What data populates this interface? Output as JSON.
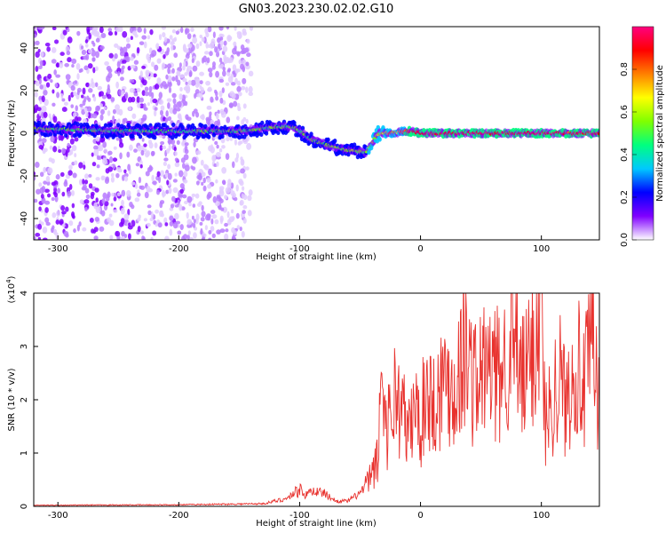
{
  "title": "GN03.2023.230.02.02.G10",
  "chart_data": [
    {
      "type": "heatmap",
      "xlabel": "Height of straight line (km)",
      "ylabel": "Frequency (Hz)",
      "xlim": [
        -320,
        148
      ],
      "ylim": [
        -50,
        50
      ],
      "xticks": [
        -300,
        -200,
        -100,
        0,
        100
      ],
      "yticks": [
        -40,
        -20,
        0,
        20,
        40
      ],
      "colorbar": {
        "label": "Normalized spectral amplitude",
        "range": [
          0,
          1
        ],
        "ticks": [
          "0.0",
          "0.2",
          "0.4",
          "0.6",
          "0.8"
        ],
        "tick_values": [
          0,
          0.2,
          0.4,
          0.6,
          0.8
        ],
        "colors": [
          "#ffffff",
          "#8000ff",
          "#0000ff",
          "#00c8ff",
          "#00ff80",
          "#80ff00",
          "#ffff00",
          "#ff8000",
          "#ff0000",
          "#ff0080"
        ]
      },
      "ridge": [
        {
          "x": -320,
          "f": 2,
          "amp": 0.55
        },
        {
          "x": -300,
          "f": 2,
          "amp": 0.5
        },
        {
          "x": -250,
          "f": 1,
          "amp": 0.45
        },
        {
          "x": -200,
          "f": 1,
          "amp": 0.45
        },
        {
          "x": -150,
          "f": 1,
          "amp": 0.5
        },
        {
          "x": -120,
          "f": 3,
          "amp": 0.5
        },
        {
          "x": -105,
          "f": 3,
          "amp": 0.5
        },
        {
          "x": -90,
          "f": -3,
          "amp": 0.5
        },
        {
          "x": -75,
          "f": -6,
          "amp": 0.55
        },
        {
          "x": -60,
          "f": -8,
          "amp": 0.55
        },
        {
          "x": -45,
          "f": -9,
          "amp": 0.55
        },
        {
          "x": -35,
          "f": 0,
          "amp": 0.6
        },
        {
          "x": -25,
          "f": 0,
          "amp": 0.7
        },
        {
          "x": -10,
          "f": 1,
          "amp": 0.8
        },
        {
          "x": 0,
          "f": 0,
          "amp": 0.9
        },
        {
          "x": 50,
          "f": 0,
          "amp": 0.92
        },
        {
          "x": 100,
          "f": 0,
          "amp": 0.9
        },
        {
          "x": 148,
          "f": 0,
          "amp": 0.9
        }
      ],
      "noise_region": {
        "x": [
          -320,
          -140
        ],
        "f": [
          -50,
          50
        ],
        "amp_max": 0.35
      }
    },
    {
      "type": "line",
      "xlabel": "Height of straight line (km)",
      "ylabel": "SNR (10 * v/v)",
      "y_multiplier": "(x10",
      "y_multiplier_exp": "4",
      "y_multiplier_close": ")",
      "xlim": [
        -320,
        148
      ],
      "ylim": [
        0,
        4
      ],
      "xticks": [
        -300,
        -200,
        -100,
        0,
        100
      ],
      "yticks": [
        0,
        1,
        2,
        3,
        4
      ],
      "series": [
        {
          "color": "#e8322e",
          "points": [
            [
              -320,
              0.02
            ],
            [
              -200,
              0.03
            ],
            [
              -130,
              0.05
            ],
            [
              -110,
              0.15
            ],
            [
              -100,
              0.35
            ],
            [
              -95,
              0.2
            ],
            [
              -90,
              0.3
            ],
            [
              -80,
              0.25
            ],
            [
              -70,
              0.1
            ],
            [
              -60,
              0.1
            ],
            [
              -50,
              0.25
            ],
            [
              -45,
              0.4
            ],
            [
              -40,
              0.6
            ],
            [
              -35,
              0.9
            ],
            [
              -32,
              2.75
            ],
            [
              -28,
              1.4
            ],
            [
              -22,
              2.1
            ],
            [
              -15,
              1.8
            ],
            [
              -10,
              1.3
            ],
            [
              -5,
              1.9
            ],
            [
              0,
              1.5
            ],
            [
              5,
              2.3
            ],
            [
              10,
              1.9
            ],
            [
              20,
              2.4
            ],
            [
              30,
              2.2
            ],
            [
              35,
              3.05
            ],
            [
              45,
              2.3
            ],
            [
              55,
              2.6
            ],
            [
              65,
              2.4
            ],
            [
              75,
              3.1
            ],
            [
              85,
              2.3
            ],
            [
              95,
              3.15
            ],
            [
              100,
              4.0
            ],
            [
              103,
              1.5
            ],
            [
              110,
              2.1
            ],
            [
              115,
              2.5
            ],
            [
              120,
              1.9
            ],
            [
              128,
              2.85
            ],
            [
              135,
              2.1
            ],
            [
              142,
              3.1
            ],
            [
              148,
              1.9
            ]
          ]
        }
      ]
    }
  ]
}
